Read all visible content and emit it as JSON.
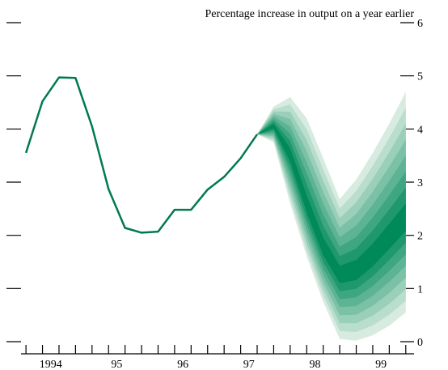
{
  "chart_data": {
    "type": "line",
    "title": "",
    "ylabel": "Percentage increase in output on a year earlier",
    "xlabel": "",
    "ylim": [
      0,
      6
    ],
    "y_ticks": [
      "0",
      "1",
      "2",
      "3",
      "4",
      "5",
      "6"
    ],
    "x_tick_labels": [
      {
        "label": "1994",
        "x": 1994.0
      },
      {
        "label": "95",
        "x": 1995.0
      },
      {
        "label": "96",
        "x": 1996.0
      },
      {
        "label": "97",
        "x": 1997.0
      },
      {
        "label": "98",
        "x": 1998.0
      },
      {
        "label": "99",
        "x": 1999.0
      }
    ],
    "xlim": [
      1993.55,
      1999.5
    ],
    "quarter_ticks_start": 1993.625,
    "quarter_ticks_count": 24,
    "grid": false,
    "colors": {
      "line": "#007a4d",
      "fan_dark": "#008a5a",
      "fan_light": "#d8ebe1"
    },
    "series": [
      {
        "values": [
          {
            "x": 1993.625,
            "y": 3.55
          },
          {
            "x": 1993.875,
            "y": 4.52
          },
          {
            "x": 1994.125,
            "y": 4.97
          },
          {
            "x": 1994.375,
            "y": 4.96
          },
          {
            "x": 1994.625,
            "y": 4.05
          },
          {
            "x": 1994.875,
            "y": 2.87
          },
          {
            "x": 1995.125,
            "y": 2.14
          },
          {
            "x": 1995.375,
            "y": 2.05
          },
          {
            "x": 1995.625,
            "y": 2.07
          },
          {
            "x": 1995.875,
            "y": 2.48
          },
          {
            "x": 1996.125,
            "y": 2.48
          },
          {
            "x": 1996.375,
            "y": 2.86
          },
          {
            "x": 1996.625,
            "y": 3.1
          },
          {
            "x": 1996.875,
            "y": 3.45
          },
          {
            "x": 1997.125,
            "y": 3.9
          }
        ]
      }
    ],
    "fan": {
      "x": [
        1997.125,
        1997.375,
        1997.625,
        1997.875,
        1998.125,
        1998.375,
        1998.625,
        1998.875,
        1999.125,
        1999.375
      ],
      "central": [
        3.9,
        4.05,
        3.5,
        2.55,
        1.75,
        1.25,
        1.32,
        1.6,
        1.95,
        2.3
      ],
      "outer_upper": [
        3.9,
        4.42,
        4.6,
        4.2,
        3.45,
        2.68,
        3.05,
        3.55,
        4.1,
        4.7
      ],
      "outer_lower": [
        3.9,
        3.75,
        2.6,
        1.6,
        0.75,
        0.05,
        0.02,
        0.12,
        0.3,
        0.55
      ],
      "bands": 8
    }
  }
}
